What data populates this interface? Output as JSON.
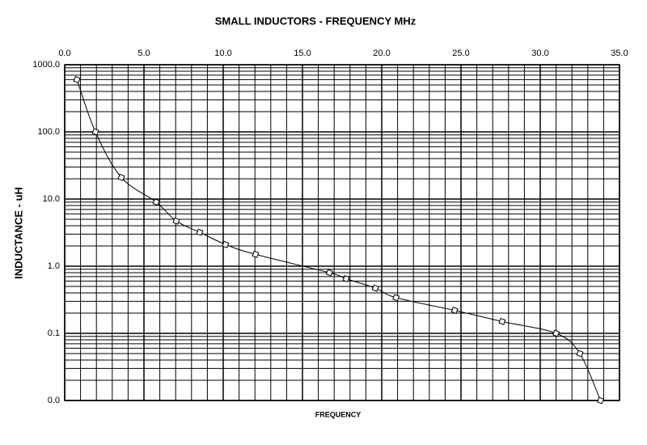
{
  "chart_data": {
    "type": "line",
    "title": "SMALL INDUCTORS  - FREQUENCY MHz",
    "x_label": "FREQUENCY",
    "y_label": "INDUCTANCE - uH",
    "x": [
      0.77,
      1.94,
      3.57,
      5.77,
      7.04,
      8.52,
      10.15,
      12.04,
      16.7,
      17.76,
      19.6,
      20.9,
      24.6,
      27.6,
      31.0,
      32.5,
      33.8
    ],
    "series": [
      {
        "color": "#000000",
        "values": [
          600,
          100,
          21,
          9,
          4.7,
          3.2,
          2.1,
          1.5,
          0.8,
          0.65,
          0.47,
          0.34,
          0.22,
          0.15,
          0.1,
          0.05,
          0.01
        ]
      }
    ],
    "xlim": [
      0,
      35
    ],
    "xticks": [
      {
        "value": 0,
        "label": "0.0"
      },
      {
        "value": 5,
        "label": "5.0"
      },
      {
        "value": 10,
        "label": "10.0"
      },
      {
        "value": 15,
        "label": "15.0"
      },
      {
        "value": 20,
        "label": "20.0"
      },
      {
        "value": 25,
        "label": "25.0"
      },
      {
        "value": 30,
        "label": "30.0"
      },
      {
        "value": 35,
        "label": "35.0"
      }
    ],
    "ylim": [
      0.01,
      1000
    ],
    "yticks": [
      {
        "value": 0.01,
        "label": "0.0"
      },
      {
        "value": 0.1,
        "label": "0.1"
      },
      {
        "value": 1,
        "label": "1.0"
      },
      {
        "value": 10,
        "label": "10.0"
      },
      {
        "value": 100,
        "label": "100.0"
      },
      {
        "value": 1000,
        "label": "1000.0"
      }
    ],
    "y_log": true,
    "grid": true,
    "minor_grid": true,
    "x_axis_position": "top"
  }
}
